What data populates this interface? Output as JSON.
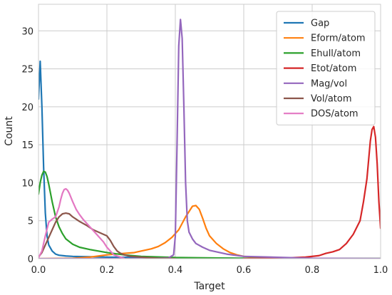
{
  "chart_data": {
    "type": "line",
    "xlabel": "Target",
    "ylabel": "Count",
    "xlim": [
      0,
      1.0
    ],
    "ylim": [
      0,
      33.5
    ],
    "xticks": [
      "0.0",
      "0.2",
      "0.4",
      "0.6",
      "0.8",
      "1.0"
    ],
    "yticks": [
      "0",
      "5",
      "10",
      "15",
      "20",
      "25",
      "30"
    ],
    "grid": true,
    "legend_position": "top-right",
    "series": [
      {
        "name": "Gap",
        "color": "#1f77b4",
        "x": [
          0.0,
          0.005,
          0.01,
          0.015,
          0.02,
          0.025,
          0.03,
          0.04,
          0.05,
          0.06,
          0.08,
          0.1,
          0.15,
          0.2,
          0.3,
          0.4,
          0.6,
          0.8,
          1.0
        ],
        "y": [
          21,
          26,
          20,
          12,
          6,
          3,
          1.8,
          1.0,
          0.6,
          0.45,
          0.35,
          0.3,
          0.25,
          0.2,
          0.15,
          0.1,
          0.05,
          0.02,
          0.01
        ]
      },
      {
        "name": "Eform/atom",
        "color": "#ff7f0e",
        "x": [
          0.0,
          0.1,
          0.15,
          0.2,
          0.25,
          0.28,
          0.3,
          0.33,
          0.35,
          0.37,
          0.39,
          0.41,
          0.43,
          0.45,
          0.46,
          0.47,
          0.48,
          0.49,
          0.5,
          0.52,
          0.54,
          0.56,
          0.58,
          0.6,
          0.65,
          0.7,
          0.8,
          1.0
        ],
        "y": [
          0,
          0.05,
          0.2,
          0.5,
          0.7,
          0.8,
          1.0,
          1.3,
          1.6,
          2.1,
          2.8,
          3.8,
          5.5,
          6.9,
          7.0,
          6.5,
          5.3,
          4.0,
          3.0,
          2.0,
          1.3,
          0.8,
          0.5,
          0.3,
          0.15,
          0.05,
          0.02,
          0.0
        ]
      },
      {
        "name": "Ehull/atom",
        "color": "#2ca02c",
        "x": [
          0.0,
          0.005,
          0.01,
          0.015,
          0.02,
          0.025,
          0.03,
          0.04,
          0.05,
          0.06,
          0.07,
          0.08,
          0.1,
          0.12,
          0.15,
          0.2,
          0.25,
          0.3,
          0.4,
          0.6,
          1.0
        ],
        "y": [
          8.5,
          10,
          11,
          11.5,
          11.4,
          10.8,
          9.8,
          7.5,
          5.5,
          4.2,
          3.3,
          2.6,
          1.9,
          1.5,
          1.2,
          0.8,
          0.5,
          0.3,
          0.15,
          0.05,
          0.0
        ]
      },
      {
        "name": "Etot/atom",
        "color": "#d62728",
        "x": [
          0.6,
          0.7,
          0.78,
          0.82,
          0.84,
          0.86,
          0.88,
          0.9,
          0.92,
          0.94,
          0.95,
          0.96,
          0.965,
          0.97,
          0.975,
          0.98,
          0.985,
          0.99,
          0.995,
          1.0
        ],
        "y": [
          0,
          0.05,
          0.2,
          0.4,
          0.7,
          0.9,
          1.2,
          2.0,
          3.2,
          5.0,
          7.5,
          10.5,
          13,
          15.5,
          17.0,
          17.4,
          16.0,
          12.5,
          7.5,
          4.0
        ]
      },
      {
        "name": "Mag/vol",
        "color": "#9467bd",
        "x": [
          0.0,
          0.3,
          0.38,
          0.395,
          0.4,
          0.405,
          0.41,
          0.415,
          0.42,
          0.425,
          0.43,
          0.435,
          0.44,
          0.45,
          0.46,
          0.48,
          0.5,
          0.55,
          0.6,
          0.8,
          1.0
        ],
        "y": [
          0,
          0,
          0.1,
          0.5,
          3,
          15,
          28,
          31.5,
          29,
          20,
          10,
          5,
          3.5,
          2.6,
          2.0,
          1.5,
          1.1,
          0.6,
          0.3,
          0.05,
          0.0
        ]
      },
      {
        "name": "Vol/atom",
        "color": "#8c564b",
        "x": [
          0.0,
          0.01,
          0.02,
          0.03,
          0.04,
          0.05,
          0.06,
          0.07,
          0.08,
          0.09,
          0.1,
          0.11,
          0.12,
          0.14,
          0.16,
          0.18,
          0.2,
          0.21,
          0.22,
          0.23,
          0.24,
          0.25,
          0.27,
          0.3,
          0.35,
          0.4
        ],
        "y": [
          0.2,
          0.8,
          1.8,
          2.8,
          3.8,
          4.8,
          5.5,
          5.9,
          6.0,
          5.9,
          5.5,
          5.2,
          4.9,
          4.4,
          3.8,
          3.4,
          3.0,
          2.4,
          1.6,
          1.0,
          0.7,
          0.5,
          0.3,
          0.2,
          0.05,
          0.0
        ]
      },
      {
        "name": "DOS/atom",
        "color": "#e377c2",
        "x": [
          0.0,
          0.01,
          0.02,
          0.03,
          0.04,
          0.05,
          0.06,
          0.065,
          0.07,
          0.075,
          0.08,
          0.085,
          0.09,
          0.1,
          0.11,
          0.12,
          0.13,
          0.15,
          0.17,
          0.19,
          0.2,
          0.22,
          0.25
        ],
        "y": [
          0.1,
          1.0,
          3.0,
          4.8,
          5.2,
          5.5,
          6.8,
          7.8,
          8.6,
          9.1,
          9.2,
          9.0,
          8.6,
          7.5,
          6.5,
          5.8,
          5.2,
          4.2,
          3.2,
          2.2,
          1.5,
          0.5,
          0.05
        ]
      }
    ]
  }
}
